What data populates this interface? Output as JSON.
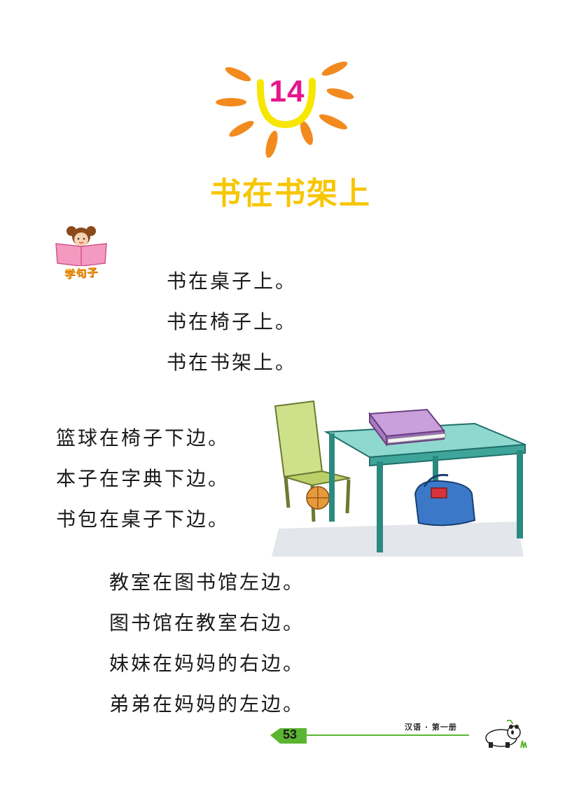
{
  "lesson": {
    "number": "14",
    "title": "书在书架上"
  },
  "section_tag": {
    "label": "学句子"
  },
  "group1": [
    "书在桌子上。",
    "书在椅子上。",
    "书在书架上。"
  ],
  "group2": [
    "篮球在椅子下边。",
    "本子在字典下边。",
    "书包在桌子下边。"
  ],
  "group3": [
    "教室在图书馆左边。",
    "图书馆在教室右边。",
    "妹妹在妈妈的右边。",
    "弟弟在妈妈的左边。"
  ],
  "footer": {
    "page_number": "53",
    "book_title": "汉语 · 第一册"
  },
  "colors": {
    "sun_rays": "#f28a1e",
    "sun_ring": "#f7e600",
    "lesson_number": "#e6168c",
    "title": "#f7c600",
    "footer_green": "#5cb531"
  }
}
